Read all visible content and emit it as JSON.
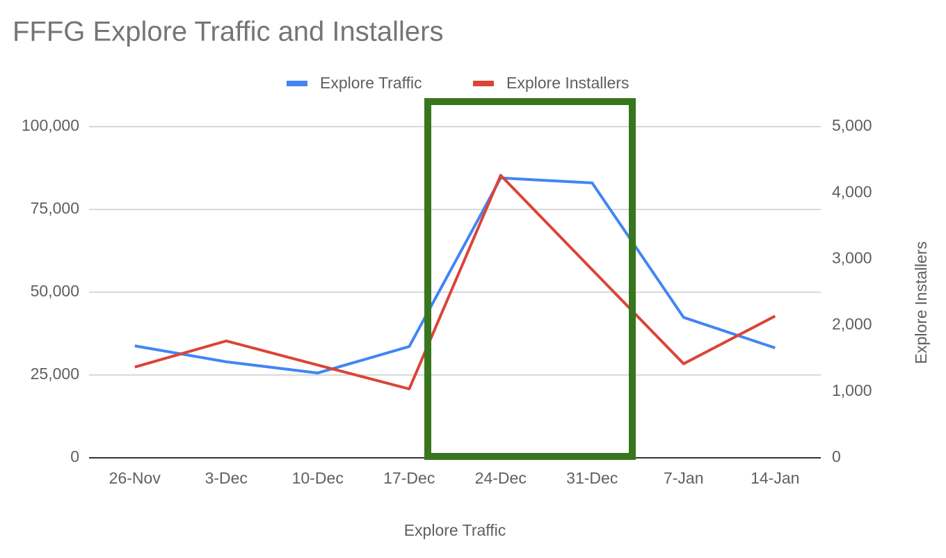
{
  "chart_data": {
    "type": "line",
    "title": "FFFG Explore Traffic and Installers",
    "x_label": "Explore Traffic",
    "y2_label": "Explore Installers",
    "categories": [
      "26-Nov",
      "3-Dec",
      "10-Dec",
      "17-Dec",
      "24-Dec",
      "31-Dec",
      "7-Jan",
      "14-Jan"
    ],
    "series": [
      {
        "name": "Explore Traffic",
        "color": "#4285f4",
        "values": [
          33800,
          29000,
          25600,
          33600,
          84500,
          83000,
          42400,
          33200
        ]
      },
      {
        "name": "Explore Installers",
        "color": "#db4437",
        "axis": "y2",
        "values": [
          1370,
          1765,
          1400,
          1040,
          4265,
          2840,
          1420,
          2140
        ]
      }
    ],
    "ylim": [
      0,
      100000
    ],
    "yticks": [
      0,
      {
        "value": 25000,
        "label": "25,000"
      },
      {
        "value": 50000,
        "label": "50,000"
      },
      {
        "value": 75000,
        "label": "75,000"
      },
      {
        "value": 100000,
        "label": "100,000"
      }
    ],
    "y2lim": [
      0,
      5000
    ],
    "y2ticks": [
      0,
      {
        "value": 1000,
        "label": "1,000"
      },
      {
        "value": 2000,
        "label": "2,000"
      },
      {
        "value": 3000,
        "label": "3,000"
      },
      {
        "value": 4000,
        "label": "4,000"
      },
      {
        "value": 5000,
        "label": "5,000"
      }
    ],
    "grid": true,
    "legend": "top"
  }
}
